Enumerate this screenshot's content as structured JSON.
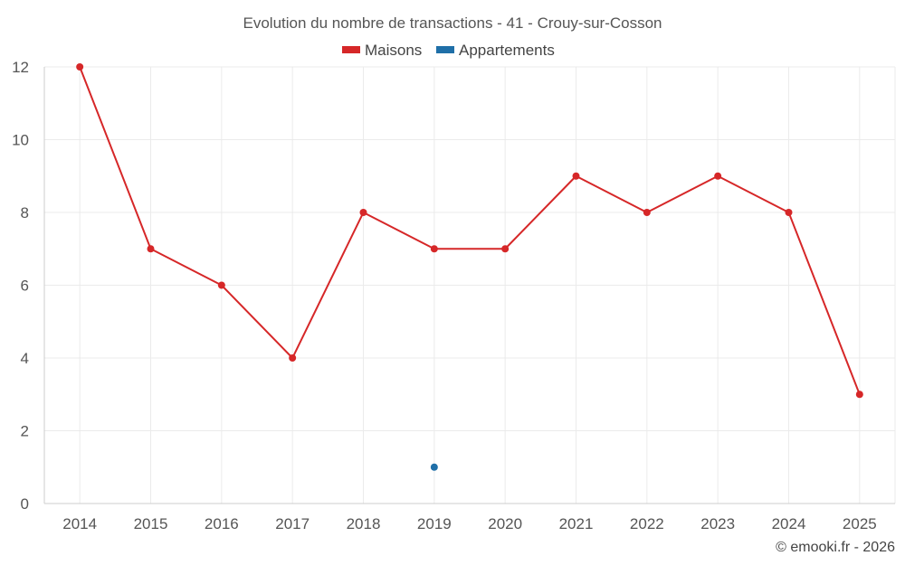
{
  "chart_data": {
    "type": "line",
    "title": "Evolution du nombre de transactions - 41 - Crouy-sur-Cosson",
    "categories": [
      "2014",
      "2015",
      "2016",
      "2017",
      "2018",
      "2019",
      "2020",
      "2021",
      "2022",
      "2023",
      "2024",
      "2025"
    ],
    "ylim": [
      0,
      12
    ],
    "yticks": [
      0,
      2,
      4,
      6,
      8,
      10,
      12
    ],
    "grid": true,
    "legend_position": "top-center",
    "series": [
      {
        "name": "Maisons",
        "color": "#d62728",
        "values": [
          12,
          7,
          6,
          4,
          8,
          7,
          7,
          9,
          8,
          9,
          8,
          3
        ]
      },
      {
        "name": "Appartements",
        "color": "#1f6fa8",
        "values": [
          null,
          null,
          null,
          null,
          null,
          1,
          null,
          null,
          null,
          null,
          null,
          null
        ]
      }
    ]
  },
  "credit": "© emooki.fr - 2026"
}
